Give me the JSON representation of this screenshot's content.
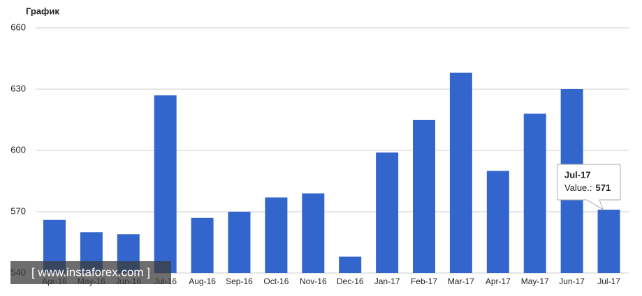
{
  "chart_data": {
    "type": "bar",
    "title": "График",
    "categories": [
      "Apr-16",
      "May-16",
      "Jun-16",
      "Jul-16",
      "Aug-16",
      "Sep-16",
      "Oct-16",
      "Nov-16",
      "Dec-16",
      "Jan-17",
      "Feb-17",
      "Mar-17",
      "Apr-17",
      "May-17",
      "Jun-17",
      "Jul-17"
    ],
    "values": [
      566,
      560,
      559,
      627,
      567,
      570,
      577,
      579,
      548,
      599,
      615,
      638,
      590,
      618,
      630,
      571
    ],
    "color": "#3366cc",
    "ylim": [
      540,
      660
    ],
    "yticks": [
      540,
      570,
      600,
      630,
      660
    ],
    "grid": true,
    "tooltip": {
      "label": "Value.:"
    },
    "watermark": "[ www.instaforex.com ]"
  }
}
